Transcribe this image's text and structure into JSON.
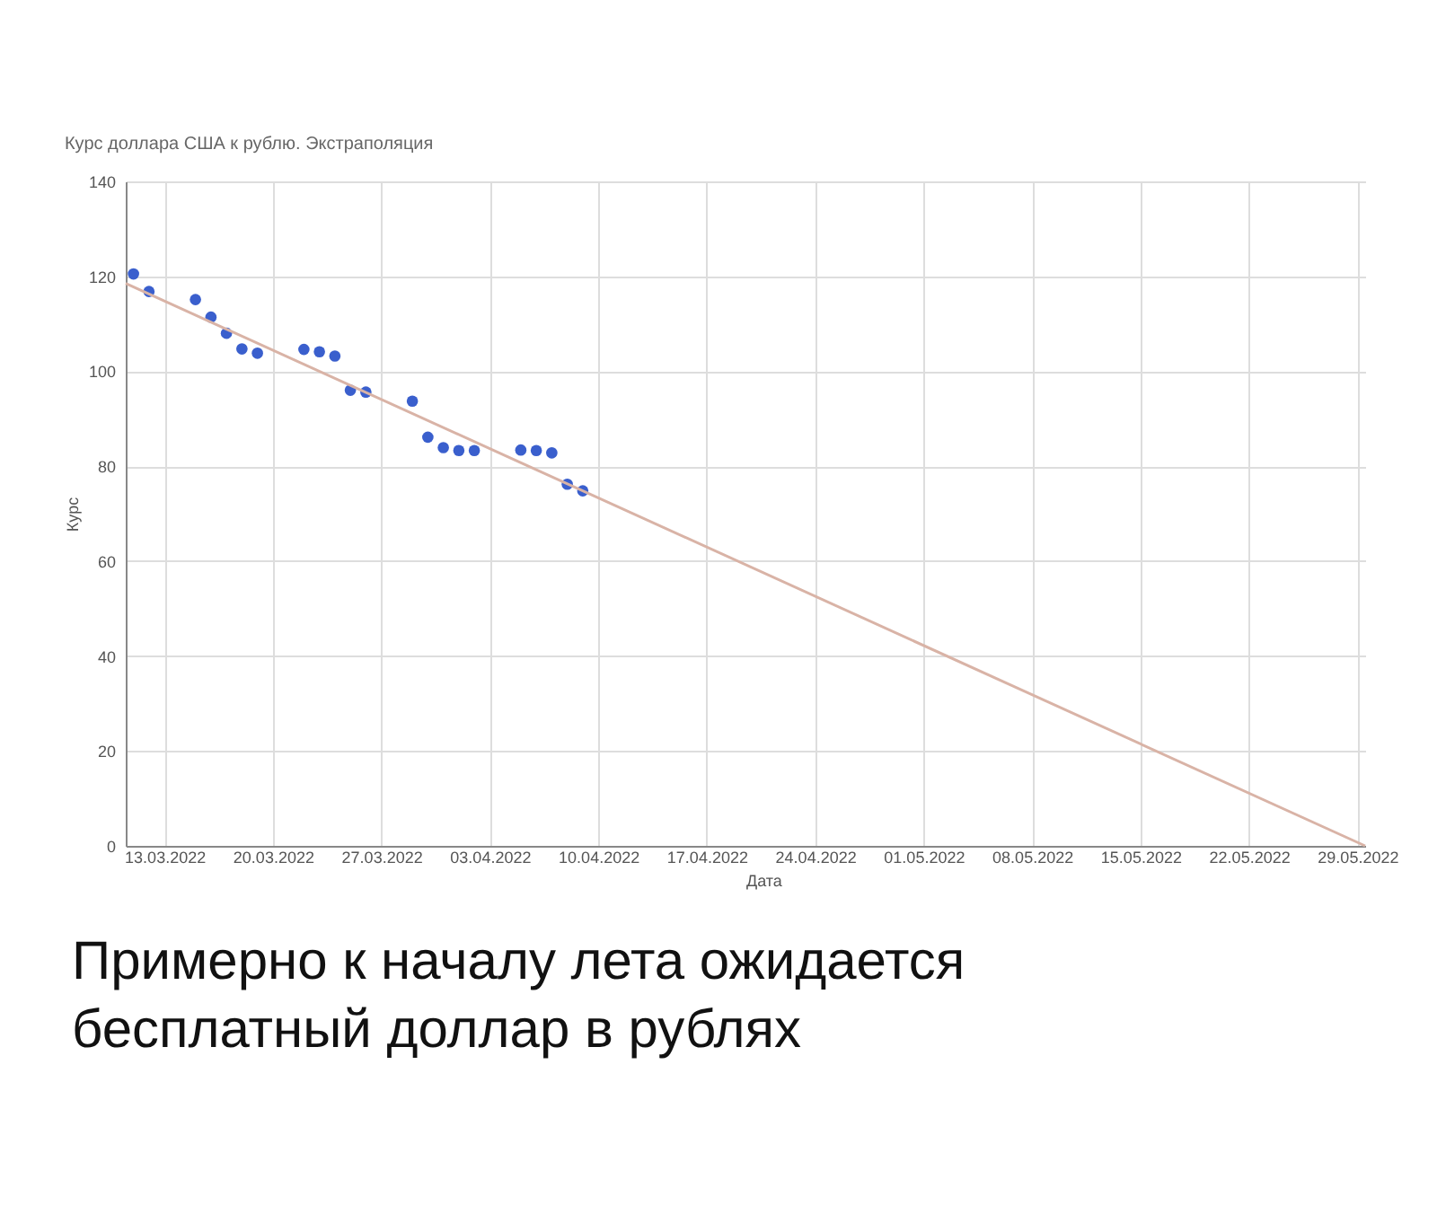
{
  "chart_data": {
    "type": "scatter",
    "title": "Курс доллара США к рублю. Экстраполяция",
    "xlabel": "Дата",
    "ylabel": "Курс",
    "annotations": [
      "Примерно к началу лета ожидается бесплатный доллар в рублях"
    ],
    "x": [
      "2022-03-11",
      "2022-03-12",
      "2022-03-15",
      "2022-03-16",
      "2022-03-17",
      "2022-03-18",
      "2022-03-19",
      "2022-03-22",
      "2022-03-23",
      "2022-03-24",
      "2022-03-25",
      "2022-03-26",
      "2022-03-29",
      "2022-03-30",
      "2022-03-31",
      "2022-04-01",
      "2022-04-02",
      "2022-04-05",
      "2022-04-06",
      "2022-04-07",
      "2022-04-08",
      "2022-04-09"
    ],
    "series": [
      {
        "color": "#3a5fcd",
        "values": [
          120.5,
          116.8,
          115.1,
          111.4,
          108,
          104.7,
          103.8,
          104.6,
          104.1,
          103.2,
          96,
          95.6,
          93.7,
          86.1,
          83.9,
          83.3,
          83.3,
          83.4,
          83.3,
          82.8,
          76.2,
          74.8
        ]
      },
      {
        "type": "line",
        "marker": "none",
        "color": "#d9b3a6",
        "x": [
          "2022-03-10T12:00",
          "2022-05-29T12:00"
        ],
        "values": [
          118.5,
          0
        ]
      }
    ],
    "xlim": [
      "2022-03-10T12:00",
      "2022-05-29T12:00"
    ],
    "xticks": [
      {
        "value": "2022-03-13",
        "label": "13.03.2022"
      },
      {
        "value": "2022-03-20",
        "label": "20.03.2022"
      },
      {
        "value": "2022-03-27",
        "label": "27.03.2022"
      },
      {
        "value": "2022-04-03",
        "label": "03.04.2022"
      },
      {
        "value": "2022-04-10",
        "label": "10.04.2022"
      },
      {
        "value": "2022-04-17",
        "label": "17.04.2022"
      },
      {
        "value": "2022-04-24",
        "label": "24.04.2022"
      },
      {
        "value": "2022-05-01",
        "label": "01.05.2022"
      },
      {
        "value": "2022-05-08",
        "label": "08.05.2022"
      },
      {
        "value": "2022-05-15",
        "label": "15.05.2022"
      },
      {
        "value": "2022-05-22",
        "label": "22.05.2022"
      },
      {
        "value": "2022-05-29",
        "label": "29.05.2022"
      }
    ],
    "ylim": [
      0,
      140
    ],
    "yticks": [
      0,
      20,
      40,
      60,
      80,
      100,
      120,
      140
    ],
    "grid": true,
    "marker": "circle"
  }
}
